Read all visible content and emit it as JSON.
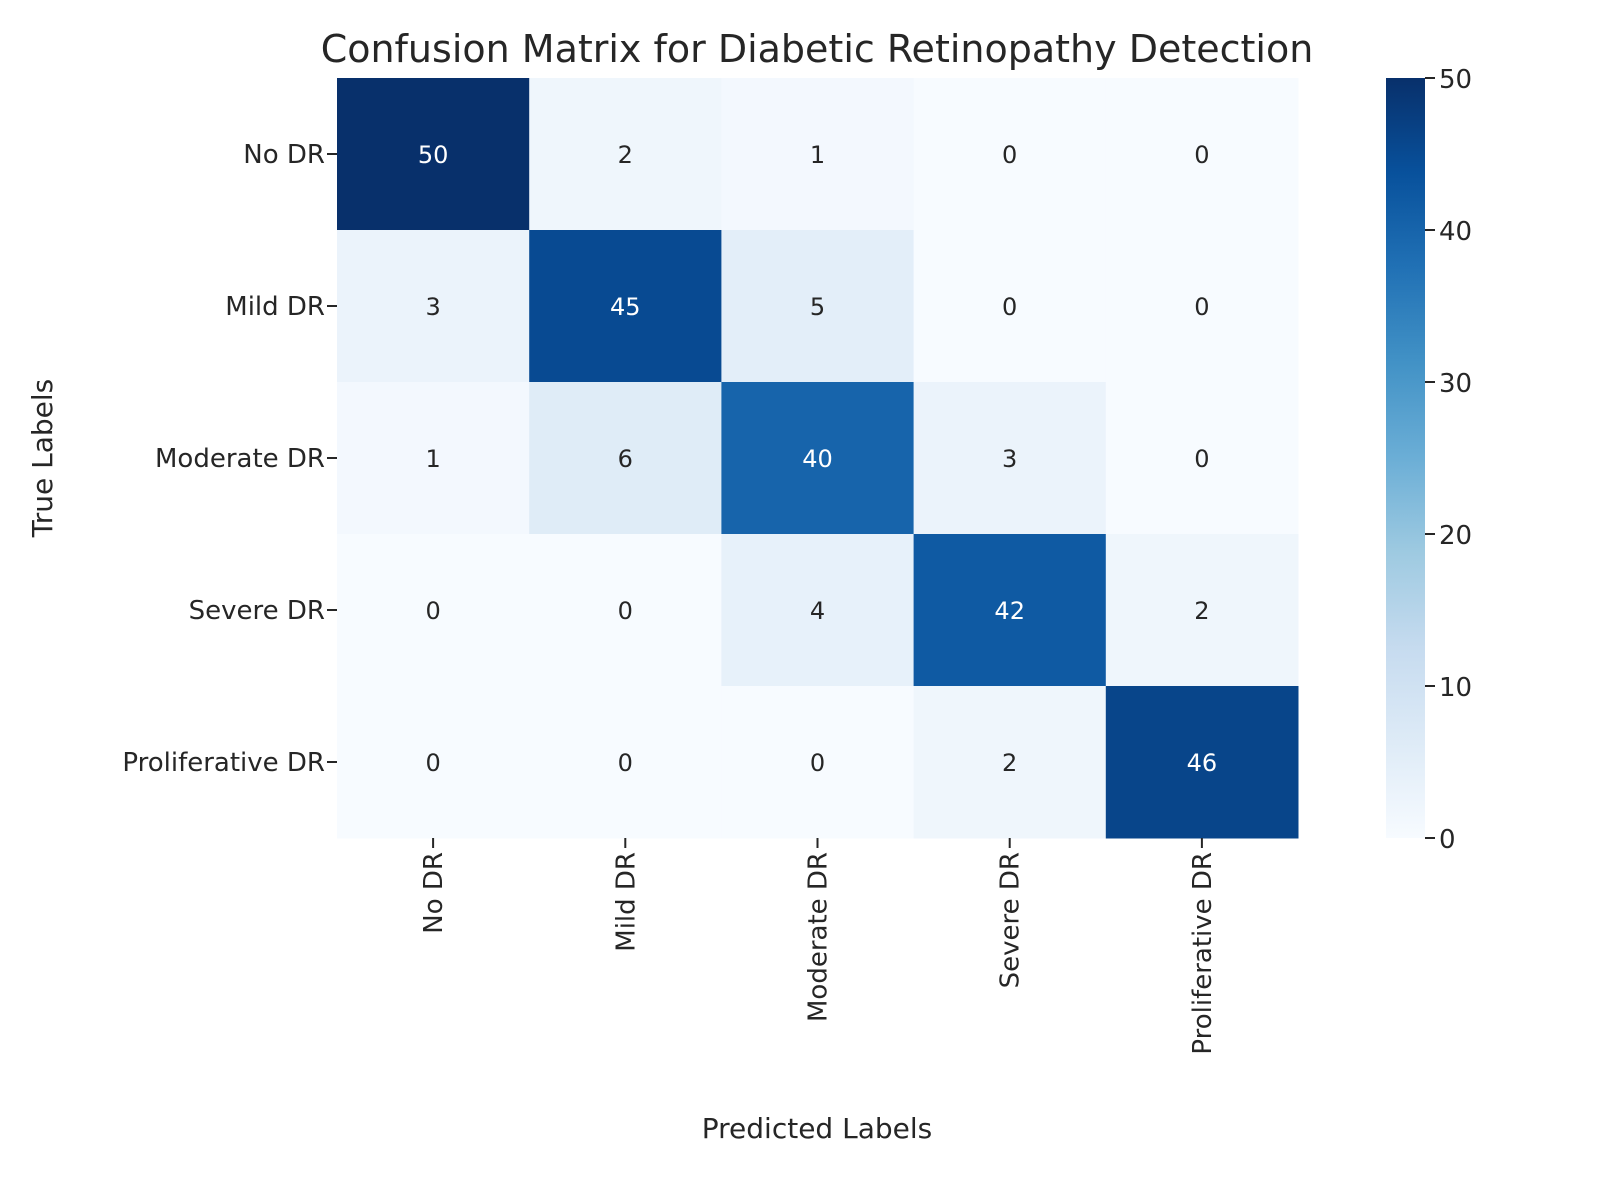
{
  "chart_data": {
    "type": "heatmap",
    "title": "Confusion Matrix for Diabetic Retinopathy Detection",
    "xlabel": "Predicted Labels",
    "ylabel": "True Labels",
    "x_categories": [
      "No DR",
      "Mild DR",
      "Moderate DR",
      "Severe DR",
      "Proliferative DR"
    ],
    "y_categories": [
      "No DR",
      "Mild DR",
      "Moderate DR",
      "Severe DR",
      "Proliferative DR"
    ],
    "values": [
      [
        50,
        2,
        1,
        0,
        0
      ],
      [
        3,
        45,
        5,
        0,
        0
      ],
      [
        1,
        6,
        40,
        3,
        0
      ],
      [
        0,
        0,
        4,
        42,
        2
      ],
      [
        0,
        0,
        0,
        2,
        46
      ]
    ],
    "colormap": "Blues",
    "colormap_stops": [
      "#f7fbff",
      "#deebf7",
      "#c6dbef",
      "#9ecae1",
      "#6baed6",
      "#4292c6",
      "#2171b5",
      "#08519c",
      "#08306b"
    ],
    "vmin": 0,
    "vmax": 50,
    "colorbar_ticks": [
      "0",
      "10",
      "20",
      "30",
      "40",
      "50"
    ],
    "annotated": true
  }
}
